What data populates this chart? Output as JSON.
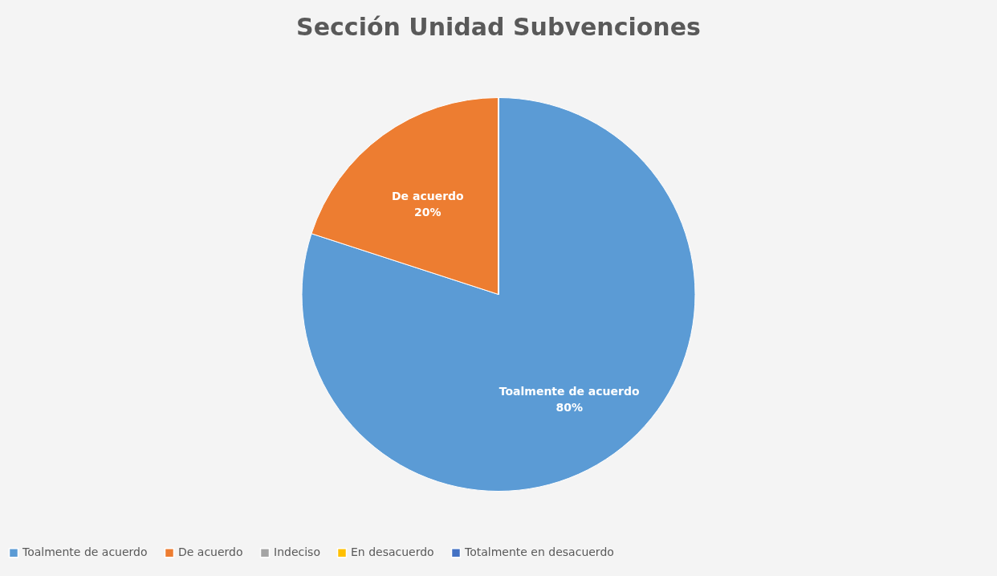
{
  "chart_data": {
    "type": "pie",
    "title": "Sección Unidad Subvenciones",
    "categories": [
      "Toalmente de acuerdo",
      "De acuerdo",
      "Indeciso",
      "En desacuerdo",
      "Totalmente en desacuerdo"
    ],
    "values": [
      80,
      20,
      0,
      0,
      0
    ],
    "colors": [
      "#5b9bd5",
      "#ed7d31",
      "#a5a5a5",
      "#ffc000",
      "#4472c4"
    ],
    "value_labels": [
      "80%",
      "20%",
      null,
      null,
      null
    ],
    "legend": "bottom"
  }
}
